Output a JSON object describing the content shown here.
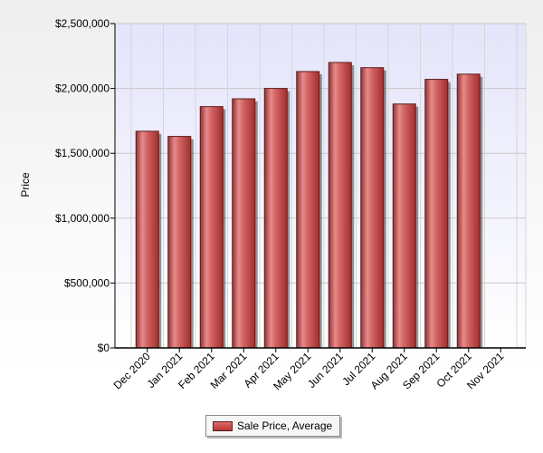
{
  "chart_data": {
    "type": "bar",
    "title": "",
    "xlabel": "",
    "ylabel": "Price",
    "ylim": [
      0,
      2500000
    ],
    "y_ticks": [
      0,
      500000,
      1000000,
      1500000,
      2000000,
      2500000
    ],
    "y_tick_labels": [
      "$0",
      "$500,000",
      "$1,000,000",
      "$1,500,000",
      "$2,000,000",
      "$2,500,000"
    ],
    "categories": [
      "Dec 2020",
      "Jan 2021",
      "Feb 2021",
      "Mar 2021",
      "Apr 2021",
      "May 2021",
      "Jun 2021",
      "Jul 2021",
      "Aug 2021",
      "Sep 2021",
      "Oct 2021",
      "Nov 2021"
    ],
    "series": [
      {
        "name": "Sale Price, Average",
        "values": [
          1670000,
          1630000,
          1860000,
          1920000,
          2000000,
          2130000,
          2200000,
          2160000,
          1880000,
          2070000,
          2110000,
          null
        ]
      }
    ],
    "grid": true,
    "legend_position": "bottom",
    "colors": {
      "bar": "#c94b4b",
      "bar_highlight": "#e58b8b",
      "bar_shadow": "#8e2828",
      "plot_top": "#e4e4fb",
      "plot_bottom": "#ffffff",
      "grid": "#c8c8c8"
    }
  }
}
